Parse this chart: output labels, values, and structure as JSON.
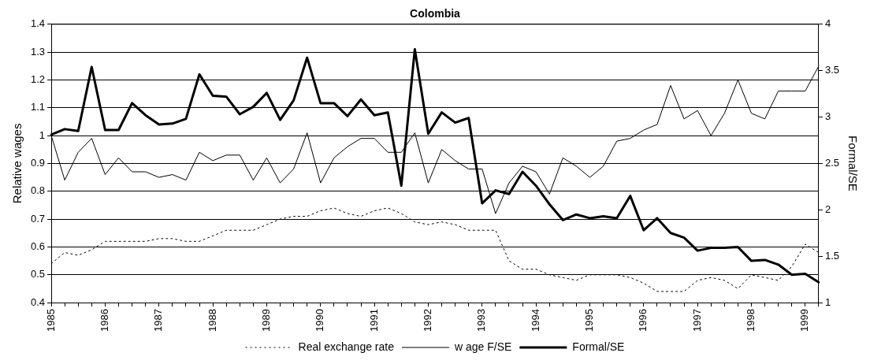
{
  "chart_data": {
    "type": "line",
    "title": "Colombia",
    "ylabel": "Relative wages",
    "y2label": "Formal/SE",
    "categories": [
      "1985",
      null,
      null,
      null,
      "1986",
      null,
      null,
      null,
      "1987",
      null,
      null,
      null,
      "1988",
      null,
      null,
      null,
      "1989",
      null,
      null,
      null,
      "1990",
      null,
      null,
      null,
      "1991",
      null,
      null,
      null,
      "1992",
      null,
      null,
      null,
      "1993",
      null,
      null,
      null,
      "1994",
      null,
      null,
      null,
      "1995",
      null,
      null,
      null,
      "1996",
      null,
      null,
      null,
      "1997",
      null,
      null,
      null,
      "1998",
      null,
      null,
      null,
      "1999",
      null
    ],
    "series": [
      {
        "name": "Real exchange rate",
        "color": "#000000",
        "line_style": "dotted",
        "values": [
          0.54,
          0.58,
          0.57,
          0.59,
          0.62,
          0.62,
          0.62,
          0.62,
          0.63,
          0.63,
          0.62,
          0.62,
          0.64,
          0.66,
          0.66,
          0.66,
          0.68,
          0.7,
          0.71,
          0.71,
          0.73,
          0.74,
          0.72,
          0.71,
          0.73,
          0.74,
          0.72,
          0.69,
          0.68,
          0.69,
          0.68,
          0.66,
          0.66,
          0.66,
          0.55,
          0.52,
          0.52,
          0.5,
          0.49,
          0.48,
          0.5,
          0.5,
          0.5,
          0.49,
          0.47,
          0.44,
          0.44,
          0.44,
          0.48,
          0.49,
          0.48,
          0.45,
          0.5,
          0.49,
          0.48,
          0.53,
          0.61,
          0.58
        ]
      },
      {
        "name": "w age F/SE",
        "color": "#000000",
        "line_style": "solid",
        "values": [
          1.0,
          0.84,
          0.94,
          0.99,
          0.86,
          0.92,
          0.87,
          0.87,
          0.85,
          0.86,
          0.84,
          0.94,
          0.91,
          0.93,
          0.93,
          0.84,
          0.92,
          0.83,
          0.88,
          1.01,
          0.83,
          0.92,
          0.96,
          0.99,
          0.99,
          0.94,
          0.94,
          1.01,
          0.83,
          0.95,
          0.91,
          0.88,
          0.88,
          0.72,
          0.83,
          0.89,
          0.87,
          0.79,
          0.92,
          0.89,
          0.85,
          0.89,
          0.98,
          0.99,
          1.02,
          1.04,
          1.18,
          1.06,
          1.09,
          1.0,
          1.08,
          1.2,
          1.08,
          1.06,
          1.16,
          1.16,
          1.16,
          1.25
        ]
      },
      {
        "name": "Formal/SE",
        "color": "#000000",
        "line_style": "solid",
        "axis": "y2",
        "values": [
          2.81,
          2.87,
          2.85,
          3.54,
          2.86,
          2.86,
          3.15,
          3.02,
          2.92,
          2.93,
          2.98,
          3.46,
          3.23,
          3.22,
          3.03,
          3.11,
          3.26,
          2.97,
          3.18,
          3.64,
          3.15,
          3.15,
          3.01,
          3.19,
          3.02,
          3.05,
          2.26,
          3.73,
          2.82,
          3.05,
          2.94,
          2.99,
          2.07,
          2.21,
          2.17,
          2.41,
          2.26,
          2.06,
          1.89,
          1.95,
          1.91,
          1.93,
          1.91,
          2.15,
          1.78,
          1.91,
          1.75,
          1.7,
          1.56,
          1.59,
          1.59,
          1.6,
          1.45,
          1.46,
          1.41,
          1.3,
          1.31,
          1.22
        ]
      }
    ],
    "ylim": [
      0.4,
      1.4
    ],
    "yticks": [
      0.4,
      0.5,
      0.6,
      0.7,
      0.8,
      0.9,
      1,
      1.1,
      1.2,
      1.3,
      1.4
    ],
    "y2lim": [
      1,
      4
    ],
    "y2ticks": [
      1,
      1.5,
      2,
      2.5,
      3,
      3.5,
      4
    ],
    "grid": "y",
    "legend": "bottom",
    "marker": "none"
  }
}
